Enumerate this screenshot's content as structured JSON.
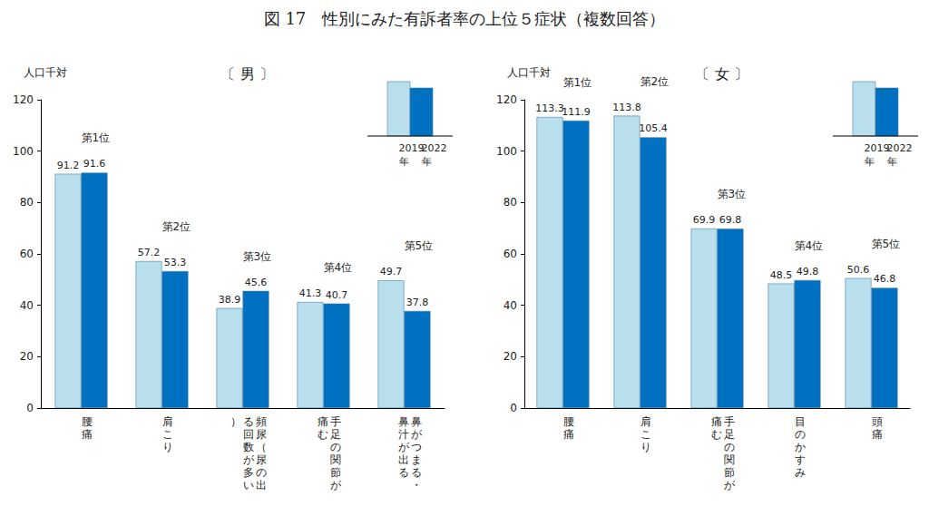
{
  "title": "図 17　性別にみた有訴者率の上位５症状（複数回答）",
  "chart_data": [
    {
      "type": "bar",
      "title": "〔 男 〕",
      "y_label": "人口千対",
      "categories": [
        "腰痛",
        "肩こり",
        "頻尿（尿の出る回数が多い）",
        "手足の関節が痛む",
        "鼻がつまる・鼻汁が出る"
      ],
      "annotations": [
        "第1位",
        "第2位",
        "第3位",
        "第4位",
        "第5位"
      ],
      "series": [
        {
          "name": "2019年",
          "color": "#b9dfec",
          "values": [
            91.2,
            57.2,
            38.9,
            41.3,
            49.7
          ]
        },
        {
          "name": "2022年",
          "color": "#0070c0",
          "values": [
            91.6,
            53.3,
            45.6,
            40.7,
            37.8
          ]
        }
      ],
      "ylim": [
        0,
        120
      ],
      "yticks": [
        0,
        20,
        40,
        60,
        80,
        100,
        120
      ],
      "grid": false,
      "data_labels": true
    },
    {
      "type": "bar",
      "title": "〔 女 〕",
      "y_label": "人口千対",
      "categories": [
        "腰痛",
        "肩こり",
        "手足の関節が痛む",
        "目のかすみ",
        "頭痛"
      ],
      "annotations": [
        "第1位",
        "第2位",
        "第3位",
        "第4位",
        "第5位"
      ],
      "series": [
        {
          "name": "2019年",
          "color": "#b9dfec",
          "values": [
            113.3,
            113.8,
            69.9,
            48.5,
            50.6
          ]
        },
        {
          "name": "2022年",
          "color": "#0070c0",
          "values": [
            111.9,
            105.4,
            69.8,
            49.8,
            46.8
          ]
        }
      ],
      "ylim": [
        0,
        120
      ],
      "yticks": [
        0,
        20,
        40,
        60,
        80,
        100,
        120
      ],
      "grid": false,
      "data_labels": true
    }
  ]
}
